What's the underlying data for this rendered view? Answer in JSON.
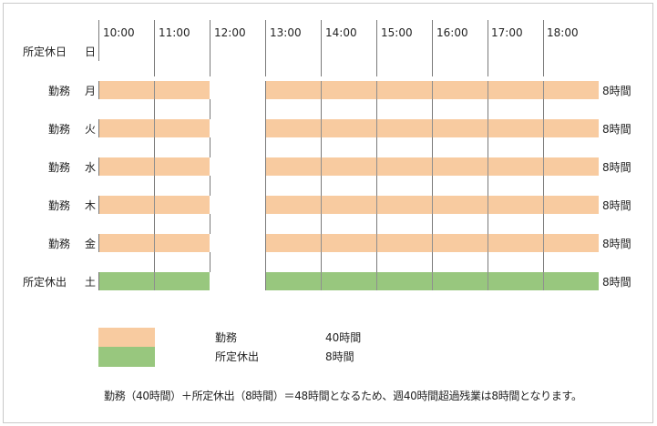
{
  "schedule": {
    "time_labels": [
      "10:00",
      "11:00",
      "12:00",
      "13:00",
      "14:00",
      "15:00",
      "16:00",
      "17:00",
      "18:00"
    ],
    "rows": [
      {
        "type": "所定休日",
        "day": "日",
        "hours": ""
      },
      {
        "type": "勤務",
        "day": "月",
        "hours": "8時間",
        "category": "work"
      },
      {
        "type": "勤務",
        "day": "火",
        "hours": "8時間",
        "category": "work"
      },
      {
        "type": "勤務",
        "day": "水",
        "hours": "8時間",
        "category": "work"
      },
      {
        "type": "勤務",
        "day": "木",
        "hours": "8時間",
        "category": "work"
      },
      {
        "type": "勤務",
        "day": "金",
        "hours": "8時間",
        "category": "work"
      },
      {
        "type": "所定休出",
        "day": "土",
        "hours": "8時間",
        "category": "holiday_work"
      }
    ]
  },
  "legend": [
    {
      "label": "勤務",
      "value": "40時間",
      "category": "work"
    },
    {
      "label": "所定休出",
      "value": "8時間",
      "category": "holiday_work"
    }
  ],
  "note": "勤務（40時間）＋所定休出（8時間）＝48時間となるため、週40時間超過残業は8時間となります。",
  "colors": {
    "work": "#f8cba0",
    "holiday_work": "#98c77e",
    "gridline": "#7a7a7a"
  }
}
